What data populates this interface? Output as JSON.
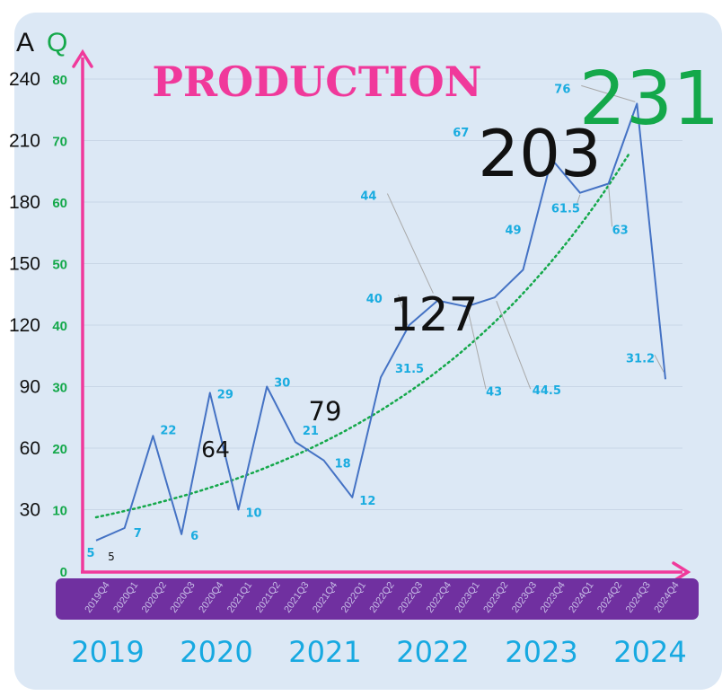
{
  "chart_data": {
    "type": "line",
    "title": "PRODUCTION",
    "left_axis_title": "A",
    "right_axis_title": "Q",
    "left_ticks": [
      0,
      30,
      60,
      90,
      120,
      150,
      180,
      210,
      240
    ],
    "right_ticks": [
      10,
      20,
      30,
      40,
      50,
      60,
      70,
      80
    ],
    "right_ylim": [
      0,
      90
    ],
    "grid": true,
    "trendline": "exponential, dotted",
    "categories": [
      "2019Q4",
      "2020Q1",
      "2020Q2",
      "2020Q3",
      "2020Q4",
      "2021Q1",
      "2021Q2",
      "2021Q3",
      "2021Q4",
      "2022Q1",
      "2022Q2",
      "2022Q3",
      "2022Q4",
      "2023Q1",
      "2023Q2",
      "2023Q3",
      "2023Q4",
      "2024Q1",
      "2024Q2",
      "2024Q3",
      "2024Q4"
    ],
    "series": [
      {
        "values": [
          5,
          7,
          22,
          6,
          29,
          10,
          30,
          21,
          18,
          12,
          31.5,
          40,
          44,
          43,
          44.5,
          49,
          67,
          61.5,
          63,
          76,
          31.2
        ]
      }
    ],
    "point_labels": [
      "5",
      "7",
      "22",
      "6",
      "29",
      "10",
      "30",
      "21",
      "18",
      "12",
      "31.5",
      "40",
      "44",
      "43",
      "44.5",
      "49",
      "67",
      "61.5",
      "63",
      "76",
      "31.2"
    ],
    "years": [
      "2019",
      "2020",
      "2021",
      "2022",
      "2023",
      "2024"
    ],
    "annual_totals": [
      {
        "year": "2019",
        "label": "5"
      },
      {
        "year": "2020",
        "label": "64"
      },
      {
        "year": "2021",
        "label": "79"
      },
      {
        "year": "2022",
        "label": "127"
      },
      {
        "year": "2023",
        "label": "203"
      },
      {
        "year": "2024",
        "label": "231"
      }
    ],
    "colors": {
      "line": "#4472c4",
      "trend": "#14a84a",
      "axis": "#f0399b",
      "band": "#7030a0",
      "labels": "#1aace0",
      "right_ticks": "#14a84a"
    }
  }
}
